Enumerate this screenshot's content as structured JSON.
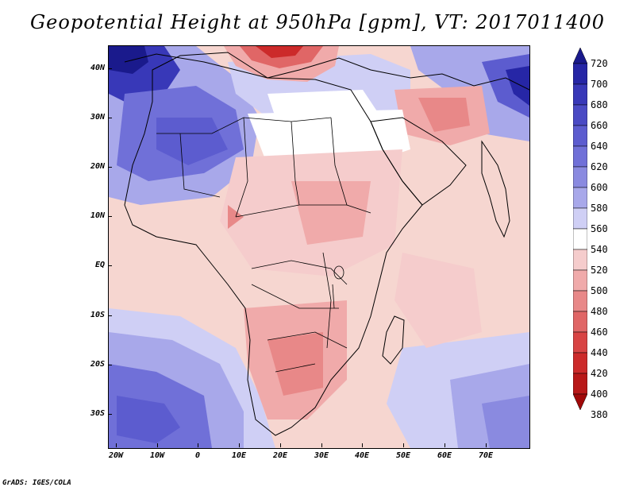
{
  "title": "Geopotential Height at 950hPa [gpm], VT: 2017011400",
  "credit": "GrADS: IGES/COLA",
  "map": {
    "lat_labels": [
      "40N",
      "30N",
      "20N",
      "10N",
      "EQ",
      "10S",
      "20S",
      "30S"
    ],
    "lon_labels": [
      "20W",
      "10W",
      "0",
      "10E",
      "20E",
      "30E",
      "40E",
      "50E",
      "60E",
      "70E"
    ],
    "region": "Africa, Arabian Peninsula and western Asia"
  },
  "colorbar": {
    "levels": [
      720,
      700,
      680,
      660,
      640,
      620,
      600,
      580,
      560,
      540,
      520,
      500,
      480,
      460,
      440,
      420,
      400,
      380
    ],
    "colors": [
      "#1a1a8c",
      "#2626a6",
      "#3838b8",
      "#4a4ac4",
      "#5c5ccf",
      "#7070d8",
      "#8a8ae0",
      "#a8a8ea",
      "#cfcff5",
      "#ffffff",
      "#f5cccc",
      "#f0aaaa",
      "#e88888",
      "#e06666",
      "#d84444",
      "#cc2a2a",
      "#b81818",
      "#a00808"
    ]
  }
}
